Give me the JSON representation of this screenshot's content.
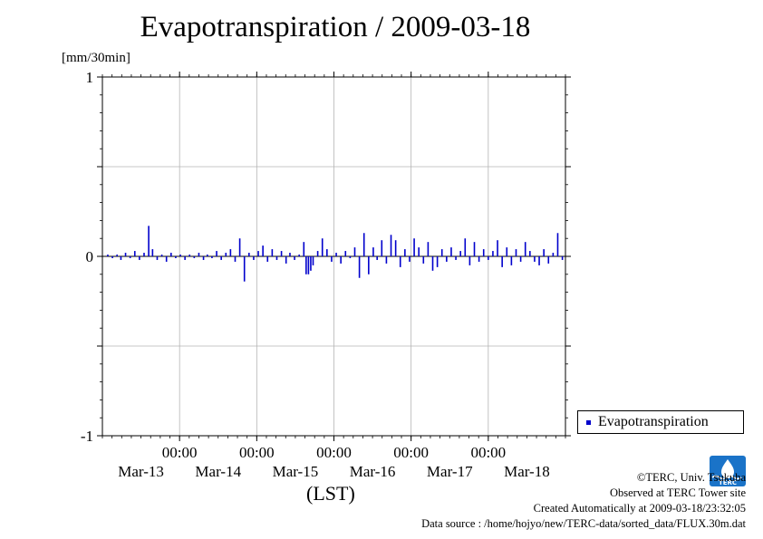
{
  "chart_data": {
    "type": "bar",
    "title": "Evapotranspiration / 2009-03-18",
    "ylabel": "[mm/30min]",
    "xlabel": "(LST)",
    "ylim": [
      -1,
      1
    ],
    "yticks": [
      "1",
      "0",
      "-1"
    ],
    "xlim_days": [
      0,
      6
    ],
    "x_ticks": [
      {
        "day": 1,
        "time": "00:00",
        "date": "Mar-14"
      },
      {
        "day": 2,
        "time": "00:00",
        "date": "Mar-15"
      },
      {
        "day": 3,
        "time": "00:00",
        "date": "Mar-16"
      },
      {
        "day": 4,
        "time": "00:00",
        "date": "Mar-17"
      },
      {
        "day": 5,
        "time": "00:00",
        "date": "Mar-18"
      }
    ],
    "x_day_labels": [
      "Mar-13",
      "Mar-14",
      "Mar-15",
      "Mar-16",
      "Mar-17",
      "Mar-18"
    ],
    "grid": true,
    "legend_position": "right",
    "series": [
      {
        "name": "Evapotranspiration",
        "color": "#0000cc",
        "points": [
          [
            0.07,
            0.01
          ],
          [
            0.13,
            -0.01
          ],
          [
            0.19,
            0.01
          ],
          [
            0.24,
            -0.02
          ],
          [
            0.3,
            0.02
          ],
          [
            0.36,
            -0.01
          ],
          [
            0.42,
            0.03
          ],
          [
            0.48,
            -0.02
          ],
          [
            0.54,
            0.02
          ],
          [
            0.6,
            0.17
          ],
          [
            0.65,
            0.04
          ],
          [
            0.71,
            -0.02
          ],
          [
            0.77,
            0.01
          ],
          [
            0.83,
            -0.03
          ],
          [
            0.89,
            0.02
          ],
          [
            0.95,
            -0.01
          ],
          [
            1.01,
            0.01
          ],
          [
            1.07,
            -0.02
          ],
          [
            1.13,
            0.01
          ],
          [
            1.19,
            -0.01
          ],
          [
            1.25,
            0.02
          ],
          [
            1.31,
            -0.02
          ],
          [
            1.36,
            0.01
          ],
          [
            1.42,
            -0.01
          ],
          [
            1.48,
            0.03
          ],
          [
            1.54,
            -0.02
          ],
          [
            1.6,
            0.02
          ],
          [
            1.66,
            0.04
          ],
          [
            1.72,
            -0.03
          ],
          [
            1.78,
            0.1
          ],
          [
            1.84,
            -0.14
          ],
          [
            1.9,
            0.02
          ],
          [
            1.96,
            -0.02
          ],
          [
            2.02,
            0.03
          ],
          [
            2.08,
            0.06
          ],
          [
            2.14,
            -0.03
          ],
          [
            2.2,
            0.04
          ],
          [
            2.26,
            -0.02
          ],
          [
            2.32,
            0.03
          ],
          [
            2.38,
            -0.04
          ],
          [
            2.43,
            0.02
          ],
          [
            2.49,
            -0.02
          ],
          [
            2.55,
            0.01
          ],
          [
            2.61,
            0.08
          ],
          [
            2.64,
            -0.1
          ],
          [
            2.67,
            -0.1
          ],
          [
            2.7,
            -0.08
          ],
          [
            2.73,
            -0.05
          ],
          [
            2.79,
            0.03
          ],
          [
            2.85,
            0.1
          ],
          [
            2.91,
            0.04
          ],
          [
            2.97,
            -0.03
          ],
          [
            3.03,
            0.02
          ],
          [
            3.09,
            -0.04
          ],
          [
            3.15,
            0.03
          ],
          [
            3.21,
            -0.01
          ],
          [
            3.27,
            0.05
          ],
          [
            3.33,
            -0.12
          ],
          [
            3.39,
            0.13
          ],
          [
            3.45,
            -0.1
          ],
          [
            3.51,
            0.05
          ],
          [
            3.56,
            -0.02
          ],
          [
            3.62,
            0.09
          ],
          [
            3.68,
            -0.04
          ],
          [
            3.74,
            0.12
          ],
          [
            3.8,
            0.09
          ],
          [
            3.86,
            -0.06
          ],
          [
            3.92,
            0.04
          ],
          [
            3.98,
            -0.03
          ],
          [
            4.04,
            0.1
          ],
          [
            4.1,
            0.05
          ],
          [
            4.16,
            -0.04
          ],
          [
            4.22,
            0.08
          ],
          [
            4.28,
            -0.08
          ],
          [
            4.34,
            -0.06
          ],
          [
            4.4,
            0.04
          ],
          [
            4.46,
            -0.03
          ],
          [
            4.52,
            0.05
          ],
          [
            4.58,
            -0.02
          ],
          [
            4.64,
            0.03
          ],
          [
            4.7,
            0.1
          ],
          [
            4.76,
            -0.05
          ],
          [
            4.82,
            0.08
          ],
          [
            4.88,
            -0.03
          ],
          [
            4.94,
            0.04
          ],
          [
            5.0,
            -0.02
          ],
          [
            5.06,
            0.03
          ],
          [
            5.12,
            0.09
          ],
          [
            5.18,
            -0.06
          ],
          [
            5.24,
            0.05
          ],
          [
            5.3,
            -0.05
          ],
          [
            5.36,
            0.04
          ],
          [
            5.42,
            -0.03
          ],
          [
            5.48,
            0.08
          ],
          [
            5.54,
            0.03
          ],
          [
            5.6,
            -0.03
          ],
          [
            5.66,
            -0.05
          ],
          [
            5.72,
            0.04
          ],
          [
            5.78,
            -0.04
          ],
          [
            5.84,
            0.02
          ],
          [
            5.9,
            0.13
          ],
          [
            5.96,
            -0.02
          ]
        ]
      }
    ]
  },
  "legend": {
    "label": "Evapotranspiration"
  },
  "credits": {
    "copyright": "©TERC, Univ. Tsukuba",
    "observed": "Observed at TERC Tower site",
    "created": "Created Automatically at 2009-03-18/23:32:05",
    "source": "Data source : /home/hojyo/new/TERC-data/sorted_data/FLUX.30m.dat"
  },
  "logo": {
    "text": "TERC",
    "icon": "terc-logo-icon",
    "color": "#1a73c8"
  }
}
